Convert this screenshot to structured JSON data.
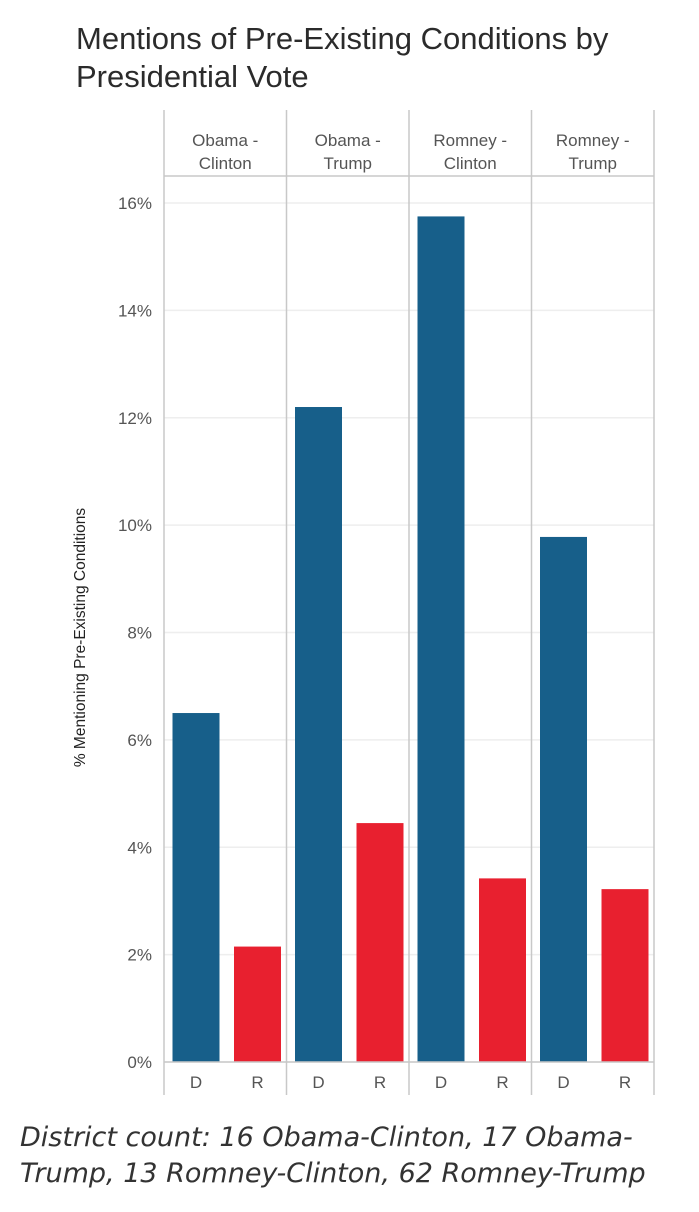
{
  "title": "Mentions of Pre-Existing Conditions by Presidential Vote",
  "footnote": "District count: 16 Obama-Clinton, 17 Obama-Trump, 13 Romney-Clinton, 62 Romney-Trump",
  "colors": {
    "D": "#175f8a",
    "R": "#e8202f",
    "grid": "#eeeeee",
    "border": "#c8c8c8"
  },
  "chart_data": {
    "type": "bar",
    "ylabel": "% Mentioning Pre-Existing Conditions",
    "ylim": [
      0,
      16
    ],
    "yticks": [
      0,
      2,
      4,
      6,
      8,
      10,
      12,
      14,
      16
    ],
    "ytick_labels": [
      "0%",
      "2%",
      "4%",
      "6%",
      "8%",
      "10%",
      "12%",
      "14%",
      "16%"
    ],
    "grid": true,
    "categories": [
      "D",
      "R"
    ],
    "facets": [
      {
        "label_lines": [
          "Obama -",
          "Clinton"
        ],
        "values": [
          6.5,
          2.15
        ]
      },
      {
        "label_lines": [
          "Obama -",
          "Trump"
        ],
        "values": [
          12.2,
          4.45
        ]
      },
      {
        "label_lines": [
          "Romney -",
          "Clinton"
        ],
        "values": [
          15.75,
          3.42
        ]
      },
      {
        "label_lines": [
          "Romney -",
          "Trump"
        ],
        "values": [
          9.78,
          3.22
        ]
      }
    ]
  }
}
